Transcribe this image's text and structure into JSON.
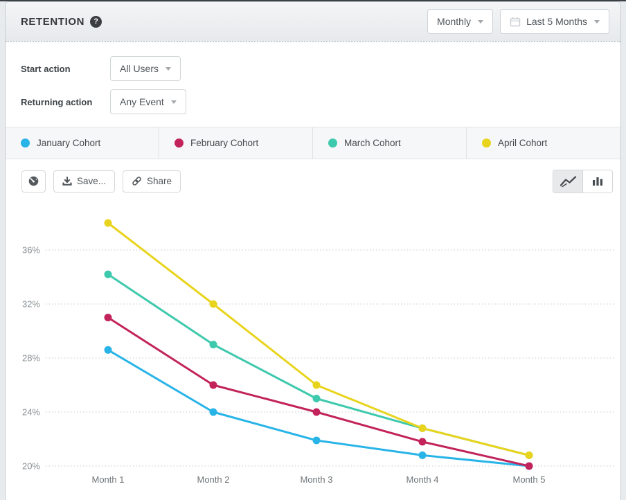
{
  "header": {
    "title": "RETENTION",
    "help_glyph": "?",
    "interval_value": "Monthly",
    "range_value": "Last 5 Months"
  },
  "filters": {
    "rows": [
      {
        "label": "Start action",
        "value": "All Users"
      },
      {
        "label": "Returning action",
        "value": "Any Event"
      }
    ]
  },
  "toolbar": {
    "save_label": "Save...",
    "share_label": "Share",
    "active_view": "line"
  },
  "icons": {
    "help": "question-circle-icon",
    "calendar": "calendar-icon",
    "dropdown_caret": "chevron-down-icon",
    "dashboard": "gauge-icon",
    "save": "download-icon",
    "share": "link-icon",
    "line_view": "line-chart-icon",
    "bar_view": "bar-chart-icon"
  },
  "chart_data": {
    "type": "line",
    "x": [
      "Month 1",
      "Month 2",
      "Month 3",
      "Month 4",
      "Month 5"
    ],
    "yticks": [
      "36%",
      "32%",
      "28%",
      "24%",
      "20%"
    ],
    "ytick_values": [
      36,
      32,
      28,
      24,
      20
    ],
    "ylim": [
      20,
      38.5
    ],
    "grid": "horizontal-dotted",
    "legend_position": "top",
    "series": [
      {
        "name": "January Cohort",
        "color": "#29b4e8",
        "values": [
          28.6,
          24,
          21.9,
          20.8,
          20
        ]
      },
      {
        "name": "February Cohort",
        "color": "#c2235a",
        "values": [
          31,
          26,
          24,
          21.8,
          20
        ]
      },
      {
        "name": "March Cohort",
        "color": "#3ec9ad",
        "values": [
          34.2,
          29,
          25,
          22.8,
          20.8
        ]
      },
      {
        "name": "April Cohort",
        "color": "#e9d41d",
        "values": [
          38,
          32,
          26,
          22.8,
          20.8
        ]
      }
    ]
  }
}
